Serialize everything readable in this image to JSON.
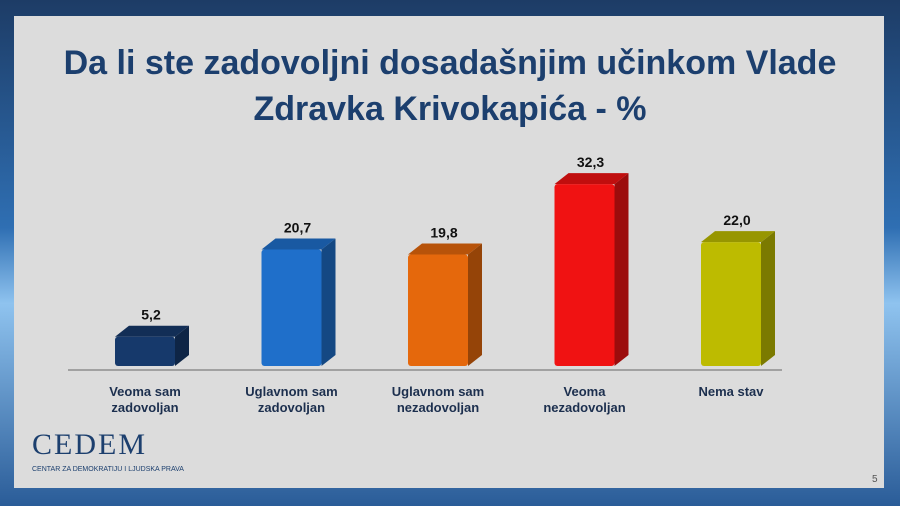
{
  "chart_data": {
    "type": "bar3d",
    "title": "Da li ste zadovoljni dosadašnjim učinkom Vlade Zdravka Krivokapića - %",
    "categories": [
      "Veoma sam zadovoljan",
      "Uglavnom sam zadovoljan",
      "Uglavnom sam nezadovoljan",
      "Veoma nezadovoljan",
      "Nema stav"
    ],
    "values": [
      5.2,
      20.7,
      19.8,
      32.3,
      22.0
    ],
    "value_labels": [
      "5,2",
      "20,7",
      "19,8",
      "32,3",
      "22,0"
    ],
    "colors": [
      "#16396b",
      "#1f6fca",
      "#e5680c",
      "#f01212",
      "#bdbb00"
    ]
  },
  "logo": {
    "name": "CEDEM",
    "subtitle": "CENTAR ZA DEMOKRATIJU I LJUDSKA PRAVA"
  },
  "page_number": "5"
}
